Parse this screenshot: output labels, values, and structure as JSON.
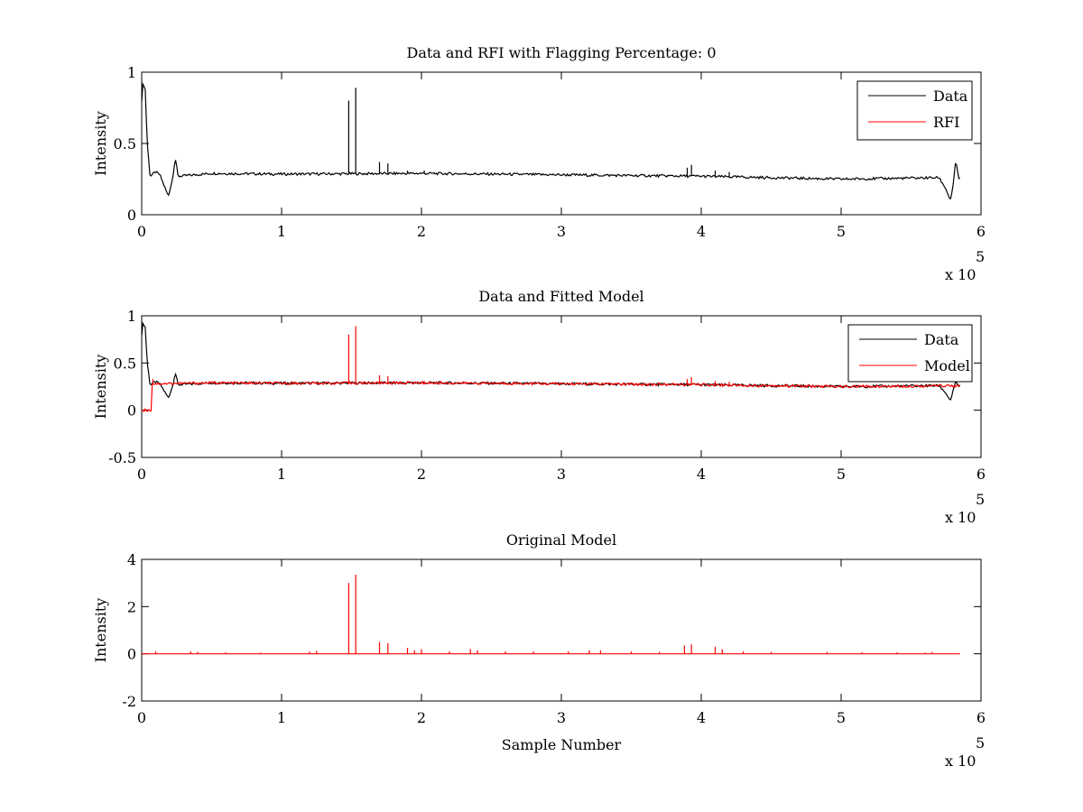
{
  "chart_data": [
    {
      "id": "panel1",
      "type": "line",
      "title": "Data and RFI with Flagging Percentage: 0",
      "xlabel": "",
      "ylabel": "Intensity",
      "xlim": [
        0,
        6
      ],
      "ylim": [
        0,
        1
      ],
      "xticks": [
        "0",
        "1",
        "2",
        "3",
        "4",
        "5",
        "6"
      ],
      "yticks": [
        "0",
        "0.5",
        "1"
      ],
      "x_multiplier": "x 10",
      "x_exponent": "5",
      "legend": {
        "position": "top-right",
        "entries": [
          "Data",
          "RFI"
        ]
      },
      "series": [
        {
          "name": "Data",
          "color": "#000000",
          "baseline": [
            [
              0,
              0.8
            ],
            [
              0.01,
              0.93
            ],
            [
              0.025,
              0.88
            ],
            [
              0.04,
              0.5
            ],
            [
              0.06,
              0.27
            ],
            [
              0.1,
              0.3
            ],
            [
              0.13,
              0.28
            ],
            [
              0.17,
              0.18
            ],
            [
              0.19,
              0.13
            ],
            [
              0.22,
              0.25
            ],
            [
              0.24,
              0.4
            ],
            [
              0.26,
              0.27
            ],
            [
              0.5,
              0.29
            ],
            [
              1.0,
              0.285
            ],
            [
              2.0,
              0.29
            ],
            [
              3.0,
              0.28
            ],
            [
              4.0,
              0.27
            ],
            [
              5.0,
              0.25
            ],
            [
              5.7,
              0.26
            ],
            [
              5.75,
              0.18
            ],
            [
              5.78,
              0.1
            ],
            [
              5.8,
              0.2
            ],
            [
              5.82,
              0.38
            ],
            [
              5.84,
              0.26
            ],
            [
              5.85,
              0.25
            ]
          ],
          "spikes": [
            [
              1.48,
              0.8
            ],
            [
              1.53,
              0.89
            ],
            [
              1.7,
              0.37
            ],
            [
              1.76,
              0.36
            ],
            [
              1.9,
              0.31
            ],
            [
              2.02,
              0.31
            ],
            [
              3.9,
              0.33
            ],
            [
              3.93,
              0.35
            ],
            [
              4.1,
              0.31
            ],
            [
              4.2,
              0.3
            ]
          ]
        },
        {
          "name": "RFI",
          "color": "#ff0000",
          "baseline": [],
          "spikes": []
        }
      ]
    },
    {
      "id": "panel2",
      "type": "line",
      "title": "Data and Fitted Model",
      "xlabel": "",
      "ylabel": "Intensity",
      "xlim": [
        0,
        6
      ],
      "ylim": [
        -0.5,
        1
      ],
      "xticks": [
        "0",
        "1",
        "2",
        "3",
        "4",
        "5",
        "6"
      ],
      "yticks": [
        "-0.5",
        "0",
        "0.5",
        "1"
      ],
      "x_multiplier": "x 10",
      "x_exponent": "5",
      "legend": {
        "position": "top-right",
        "entries": [
          "Data",
          "Model"
        ]
      },
      "series": [
        {
          "name": "Data",
          "color": "#000000",
          "baseline": [
            [
              0,
              0.8
            ],
            [
              0.01,
              0.93
            ],
            [
              0.025,
              0.88
            ],
            [
              0.04,
              0.5
            ],
            [
              0.06,
              0.27
            ],
            [
              0.1,
              0.3
            ],
            [
              0.13,
              0.28
            ],
            [
              0.17,
              0.18
            ],
            [
              0.19,
              0.13
            ],
            [
              0.22,
              0.25
            ],
            [
              0.24,
              0.4
            ],
            [
              0.26,
              0.27
            ],
            [
              0.5,
              0.29
            ],
            [
              1.0,
              0.285
            ],
            [
              2.0,
              0.29
            ],
            [
              3.0,
              0.28
            ],
            [
              4.0,
              0.27
            ],
            [
              5.0,
              0.25
            ],
            [
              5.7,
              0.26
            ],
            [
              5.75,
              0.18
            ],
            [
              5.78,
              0.1
            ],
            [
              5.8,
              0.2
            ],
            [
              5.82,
              0.3
            ],
            [
              5.84,
              0.26
            ],
            [
              5.85,
              0.25
            ]
          ],
          "spikes": []
        },
        {
          "name": "Model",
          "color": "#ff0000",
          "baseline": [
            [
              0,
              0.0
            ],
            [
              0.07,
              0.0
            ],
            [
              0.075,
              0.28
            ],
            [
              0.5,
              0.29
            ],
            [
              1.0,
              0.285
            ],
            [
              2.0,
              0.29
            ],
            [
              3.0,
              0.28
            ],
            [
              4.0,
              0.27
            ],
            [
              5.0,
              0.25
            ],
            [
              5.85,
              0.26
            ]
          ],
          "spikes": [
            [
              0.08,
              0.33
            ],
            [
              1.48,
              0.8
            ],
            [
              1.53,
              0.89
            ],
            [
              1.7,
              0.37
            ],
            [
              1.76,
              0.36
            ],
            [
              1.9,
              0.31
            ],
            [
              2.02,
              0.31
            ],
            [
              3.9,
              0.33
            ],
            [
              3.93,
              0.35
            ],
            [
              4.1,
              0.31
            ],
            [
              4.2,
              0.3
            ]
          ]
        }
      ]
    },
    {
      "id": "panel3",
      "type": "line",
      "title": "Original Model",
      "xlabel": "Sample Number",
      "ylabel": "Intensity",
      "xlim": [
        0,
        6
      ],
      "ylim": [
        -2,
        4
      ],
      "xticks": [
        "0",
        "1",
        "2",
        "3",
        "4",
        "5",
        "6"
      ],
      "yticks": [
        "-2",
        "0",
        "2",
        "4"
      ],
      "x_multiplier": "x 10",
      "x_exponent": "5",
      "legend": null,
      "series": [
        {
          "name": "",
          "color": "#ff0000",
          "baseline": [
            [
              0,
              0.0
            ],
            [
              5.85,
              0.0
            ]
          ],
          "spikes": [
            [
              0.1,
              0.1
            ],
            [
              0.35,
              0.1
            ],
            [
              0.4,
              0.08
            ],
            [
              0.6,
              0.06
            ],
            [
              0.85,
              0.05
            ],
            [
              1.2,
              0.1
            ],
            [
              1.25,
              0.12
            ],
            [
              1.48,
              3.0
            ],
            [
              1.53,
              3.35
            ],
            [
              1.7,
              0.5
            ],
            [
              1.76,
              0.45
            ],
            [
              1.9,
              0.25
            ],
            [
              1.95,
              0.15
            ],
            [
              2.0,
              0.2
            ],
            [
              2.2,
              0.1
            ],
            [
              2.35,
              0.2
            ],
            [
              2.4,
              0.15
            ],
            [
              2.6,
              0.1
            ],
            [
              2.8,
              0.1
            ],
            [
              3.05,
              0.1
            ],
            [
              3.2,
              0.15
            ],
            [
              3.28,
              0.15
            ],
            [
              3.5,
              0.1
            ],
            [
              3.7,
              0.08
            ],
            [
              3.88,
              0.35
            ],
            [
              3.93,
              0.4
            ],
            [
              4.1,
              0.3
            ],
            [
              4.15,
              0.2
            ],
            [
              4.3,
              0.1
            ],
            [
              4.5,
              0.08
            ],
            [
              4.9,
              0.08
            ],
            [
              5.15,
              0.06
            ],
            [
              5.4,
              0.06
            ],
            [
              5.6,
              0.05
            ],
            [
              5.65,
              0.08
            ]
          ]
        }
      ]
    }
  ]
}
